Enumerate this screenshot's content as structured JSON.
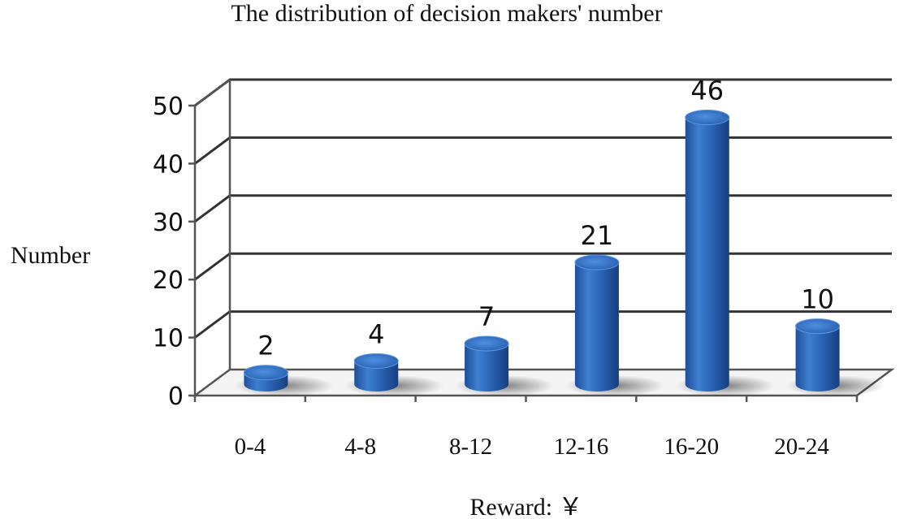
{
  "chart_data": {
    "type": "bar",
    "title": "The distribution of decision makers' number",
    "xlabel": "Reward: ￥",
    "ylabel": "Number",
    "categories": [
      "0-4",
      "4-8",
      "8-12",
      "12-16",
      "16-20",
      "20-24"
    ],
    "values": [
      2,
      4,
      7,
      21,
      46,
      10
    ],
    "data_labels": [
      "2",
      "4",
      "7",
      "21",
      "46",
      "10"
    ],
    "ylim": [
      0,
      50
    ],
    "yticks": [
      0,
      10,
      20,
      30,
      40,
      50
    ],
    "ytick_labels": [
      "0",
      "10",
      "20",
      "30",
      "40",
      "50"
    ],
    "grid": true,
    "style": "3d-cylinder",
    "bar_color": "#2F6BBF"
  }
}
